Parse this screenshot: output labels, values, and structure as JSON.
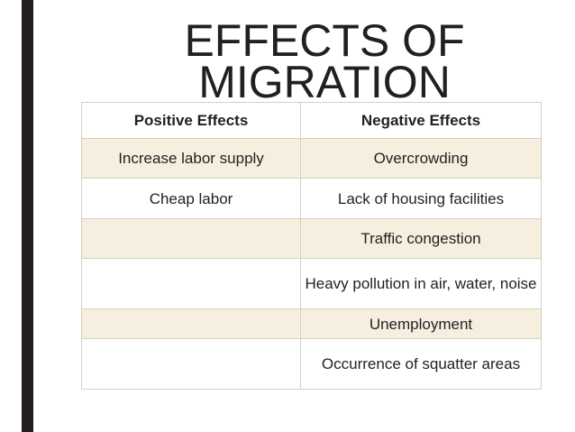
{
  "title": {
    "line1": "EFFECTS OF",
    "line2": "MIGRATION"
  },
  "table": {
    "headers": [
      "Positive Effects",
      "Negative Effects"
    ],
    "rows": [
      [
        "Increase labor supply",
        "Overcrowding"
      ],
      [
        "Cheap labor",
        "Lack of housing facilities"
      ],
      [
        "",
        "Traffic congestion"
      ],
      [
        "",
        "Heavy pollution in air, water, noise"
      ],
      [
        "",
        "Unemployment"
      ],
      [
        "",
        "Occurrence of squatter areas"
      ]
    ]
  },
  "colors": {
    "text": "#231f20",
    "accent_bar": "#231f20",
    "row_fill": "#f6efdf",
    "border": "#d6d0c4"
  }
}
